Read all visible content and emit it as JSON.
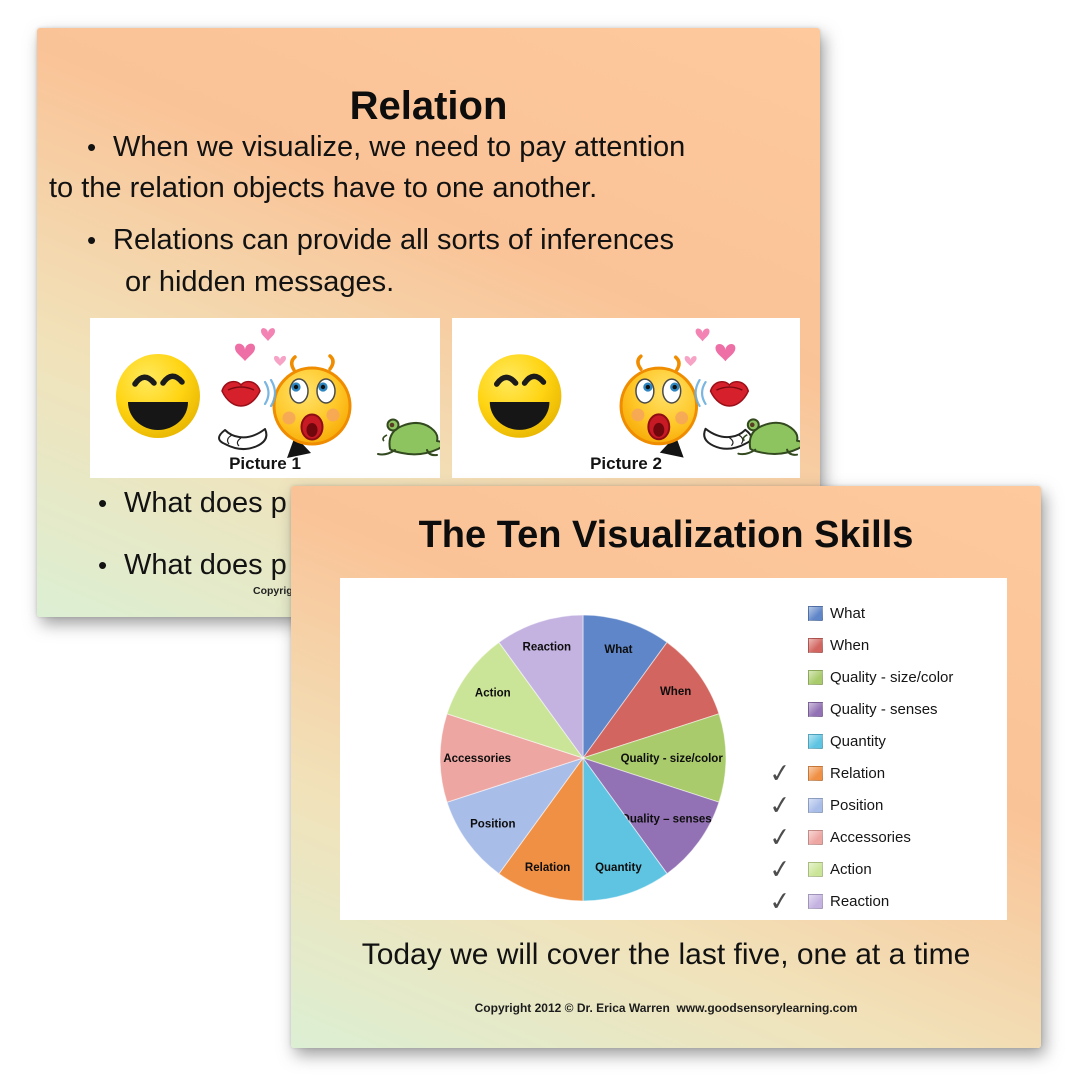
{
  "back_slide": {
    "title": "Relation",
    "bullet_lines": [
      {
        "marker": "•",
        "text": "When we visualize, we need to pay attention"
      },
      {
        "marker": "",
        "text": "to the relation objects have to one another."
      },
      {
        "marker": "•",
        "text": "Relations can provide all sorts of inferences"
      },
      {
        "marker": "",
        "text": "or hidden messages."
      }
    ],
    "pictures": [
      {
        "caption": "Picture 1"
      },
      {
        "caption": "Picture 2"
      }
    ],
    "partial_bullets": [
      {
        "marker": "•",
        "text": "What does p"
      },
      {
        "marker": "•",
        "text": "What does p"
      }
    ],
    "copyright_partial": "Copyrig"
  },
  "front_slide": {
    "title": "The Ten Visualization Skills",
    "footer_line": "Today we will cover the last five, one at a time",
    "copyright": "Copyright 2012 © Dr. Erica Warren  www.goodsensorylearning.com"
  },
  "chart_data": {
    "type": "pie",
    "title": "The Ten Visualization Skills",
    "categories": [
      "What",
      "When",
      "Quality - size/color",
      "Quality – senses",
      "Quantity",
      "Relation",
      "Position",
      "Accessories",
      "Action",
      "Reaction"
    ],
    "values": [
      10,
      10,
      10,
      10,
      10,
      10,
      10,
      10,
      10,
      10
    ],
    "value_unit": "percent",
    "colors": [
      "#5f86c8",
      "#d2655f",
      "#a9cb6b",
      "#9271b4",
      "#5ec4e2",
      "#f09044",
      "#a9bde9",
      "#eda6a2",
      "#cbe598",
      "#c4b3e1"
    ],
    "label_color": "#0d0d0d",
    "legend": {
      "position": "right",
      "check_color": "#4d4d4d",
      "check_glyph": "✓",
      "items": [
        {
          "label": "What",
          "checked": false
        },
        {
          "label": "When",
          "checked": false
        },
        {
          "label": "Quality - size/color",
          "checked": false
        },
        {
          "label": "Quality - senses",
          "checked": false
        },
        {
          "label": "Quantity",
          "checked": false
        },
        {
          "label": "Relation",
          "checked": true
        },
        {
          "label": "Position",
          "checked": true
        },
        {
          "label": "Accessories",
          "checked": true
        },
        {
          "label": "Action",
          "checked": true
        },
        {
          "label": "Reaction",
          "checked": true
        }
      ]
    }
  }
}
